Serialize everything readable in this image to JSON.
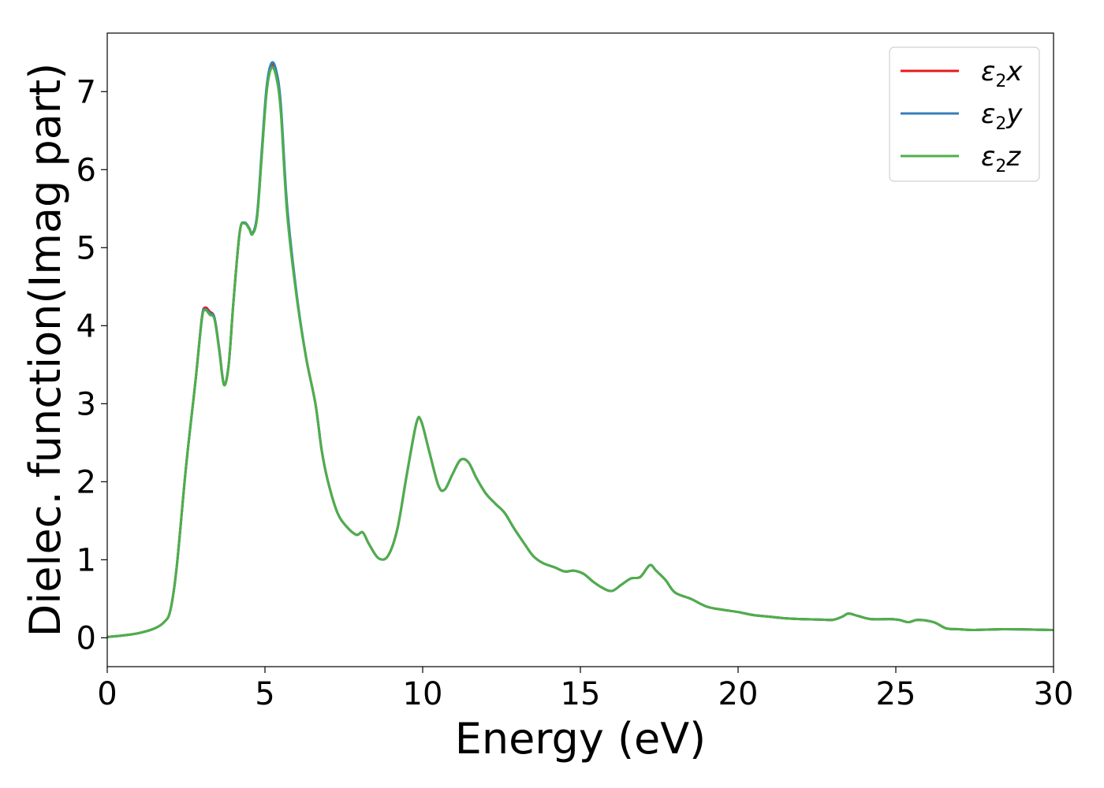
{
  "chart_data": {
    "type": "line",
    "title": "",
    "xlabel": "Energy (eV)",
    "ylabel": "Dielec. function(Imag part)",
    "xlim": [
      0,
      30
    ],
    "ylim": [
      -0.37,
      7.75
    ],
    "xticks": [
      0,
      5,
      10,
      15,
      20,
      25,
      30
    ],
    "yticks": [
      0,
      1,
      2,
      3,
      4,
      5,
      6,
      7
    ],
    "grid": false,
    "legend_position": "top-right",
    "series": [
      {
        "name": "ε2x",
        "label_main": "ε",
        "label_sub": "2",
        "label_suffix": "x",
        "color": "#e41a1c",
        "points": [
          [
            0,
            0.01
          ],
          [
            0.5,
            0.03
          ],
          [
            1.0,
            0.06
          ],
          [
            1.5,
            0.12
          ],
          [
            1.8,
            0.2
          ],
          [
            2.0,
            0.35
          ],
          [
            2.2,
            0.9
          ],
          [
            2.5,
            2.2
          ],
          [
            2.8,
            3.3
          ],
          [
            3.0,
            4.1
          ],
          [
            3.1,
            4.23
          ],
          [
            3.25,
            4.18
          ],
          [
            3.4,
            4.1
          ],
          [
            3.55,
            3.7
          ],
          [
            3.7,
            3.25
          ],
          [
            3.85,
            3.5
          ],
          [
            4.0,
            4.3
          ],
          [
            4.2,
            5.2
          ],
          [
            4.35,
            5.32
          ],
          [
            4.5,
            5.25
          ],
          [
            4.6,
            5.18
          ],
          [
            4.75,
            5.4
          ],
          [
            4.9,
            6.2
          ],
          [
            5.05,
            7.0
          ],
          [
            5.2,
            7.33
          ],
          [
            5.35,
            7.25
          ],
          [
            5.5,
            6.8
          ],
          [
            5.7,
            5.5
          ],
          [
            6.0,
            4.4
          ],
          [
            6.3,
            3.6
          ],
          [
            6.6,
            3.0
          ],
          [
            6.8,
            2.4
          ],
          [
            7.0,
            2.0
          ],
          [
            7.3,
            1.6
          ],
          [
            7.6,
            1.42
          ],
          [
            7.9,
            1.32
          ],
          [
            8.1,
            1.35
          ],
          [
            8.3,
            1.2
          ],
          [
            8.6,
            1.02
          ],
          [
            8.9,
            1.05
          ],
          [
            9.2,
            1.4
          ],
          [
            9.5,
            2.1
          ],
          [
            9.8,
            2.75
          ],
          [
            9.95,
            2.78
          ],
          [
            10.2,
            2.4
          ],
          [
            10.5,
            1.95
          ],
          [
            10.7,
            1.9
          ],
          [
            10.95,
            2.1
          ],
          [
            11.2,
            2.28
          ],
          [
            11.45,
            2.25
          ],
          [
            11.7,
            2.05
          ],
          [
            12.0,
            1.85
          ],
          [
            12.3,
            1.72
          ],
          [
            12.6,
            1.6
          ],
          [
            12.9,
            1.4
          ],
          [
            13.2,
            1.22
          ],
          [
            13.5,
            1.05
          ],
          [
            13.8,
            0.96
          ],
          [
            14.2,
            0.9
          ],
          [
            14.5,
            0.85
          ],
          [
            14.8,
            0.86
          ],
          [
            15.1,
            0.82
          ],
          [
            15.4,
            0.72
          ],
          [
            15.7,
            0.64
          ],
          [
            16.0,
            0.6
          ],
          [
            16.3,
            0.68
          ],
          [
            16.6,
            0.76
          ],
          [
            16.9,
            0.78
          ],
          [
            17.2,
            0.93
          ],
          [
            17.4,
            0.86
          ],
          [
            17.7,
            0.74
          ],
          [
            18.0,
            0.58
          ],
          [
            18.5,
            0.5
          ],
          [
            19.0,
            0.4
          ],
          [
            19.5,
            0.36
          ],
          [
            20.0,
            0.33
          ],
          [
            20.5,
            0.29
          ],
          [
            21.0,
            0.27
          ],
          [
            21.5,
            0.25
          ],
          [
            22.0,
            0.24
          ],
          [
            22.5,
            0.235
          ],
          [
            23.0,
            0.23
          ],
          [
            23.3,
            0.27
          ],
          [
            23.5,
            0.31
          ],
          [
            23.8,
            0.28
          ],
          [
            24.2,
            0.24
          ],
          [
            24.8,
            0.24
          ],
          [
            25.1,
            0.23
          ],
          [
            25.4,
            0.2
          ],
          [
            25.7,
            0.23
          ],
          [
            26.2,
            0.2
          ],
          [
            26.6,
            0.12
          ],
          [
            27.0,
            0.11
          ],
          [
            27.5,
            0.1
          ],
          [
            28.5,
            0.11
          ],
          [
            30,
            0.1
          ]
        ]
      },
      {
        "name": "ε2y",
        "label_main": "ε",
        "label_sub": "2",
        "label_suffix": "y",
        "color": "#377eb8",
        "points": [
          [
            0,
            0.01
          ],
          [
            0.5,
            0.03
          ],
          [
            1.0,
            0.06
          ],
          [
            1.5,
            0.12
          ],
          [
            1.8,
            0.2
          ],
          [
            2.0,
            0.35
          ],
          [
            2.2,
            0.9
          ],
          [
            2.5,
            2.2
          ],
          [
            2.8,
            3.3
          ],
          [
            3.0,
            4.1
          ],
          [
            3.1,
            4.21
          ],
          [
            3.25,
            4.16
          ],
          [
            3.4,
            4.1
          ],
          [
            3.55,
            3.7
          ],
          [
            3.7,
            3.25
          ],
          [
            3.85,
            3.5
          ],
          [
            4.0,
            4.3
          ],
          [
            4.2,
            5.2
          ],
          [
            4.35,
            5.32
          ],
          [
            4.5,
            5.25
          ],
          [
            4.6,
            5.18
          ],
          [
            4.75,
            5.42
          ],
          [
            4.9,
            6.25
          ],
          [
            5.05,
            7.05
          ],
          [
            5.2,
            7.36
          ],
          [
            5.35,
            7.28
          ],
          [
            5.5,
            6.85
          ],
          [
            5.7,
            5.55
          ],
          [
            6.0,
            4.42
          ],
          [
            6.3,
            3.6
          ],
          [
            6.6,
            3.0
          ],
          [
            6.8,
            2.4
          ],
          [
            7.0,
            2.0
          ],
          [
            7.3,
            1.6
          ],
          [
            7.6,
            1.42
          ],
          [
            7.9,
            1.32
          ],
          [
            8.1,
            1.35
          ],
          [
            8.3,
            1.2
          ],
          [
            8.6,
            1.02
          ],
          [
            8.9,
            1.05
          ],
          [
            9.2,
            1.4
          ],
          [
            9.5,
            2.1
          ],
          [
            9.8,
            2.75
          ],
          [
            9.95,
            2.78
          ],
          [
            10.2,
            2.4
          ],
          [
            10.5,
            1.95
          ],
          [
            10.7,
            1.9
          ],
          [
            10.95,
            2.1
          ],
          [
            11.2,
            2.28
          ],
          [
            11.45,
            2.25
          ],
          [
            11.7,
            2.05
          ],
          [
            12.0,
            1.85
          ],
          [
            12.3,
            1.72
          ],
          [
            12.6,
            1.6
          ],
          [
            12.9,
            1.4
          ],
          [
            13.2,
            1.22
          ],
          [
            13.5,
            1.05
          ],
          [
            13.8,
            0.96
          ],
          [
            14.2,
            0.9
          ],
          [
            14.5,
            0.85
          ],
          [
            14.8,
            0.86
          ],
          [
            15.1,
            0.82
          ],
          [
            15.4,
            0.72
          ],
          [
            15.7,
            0.64
          ],
          [
            16.0,
            0.6
          ],
          [
            16.3,
            0.68
          ],
          [
            16.6,
            0.76
          ],
          [
            16.9,
            0.78
          ],
          [
            17.2,
            0.93
          ],
          [
            17.4,
            0.86
          ],
          [
            17.7,
            0.74
          ],
          [
            18.0,
            0.58
          ],
          [
            18.5,
            0.5
          ],
          [
            19.0,
            0.4
          ],
          [
            19.5,
            0.36
          ],
          [
            20.0,
            0.33
          ],
          [
            20.5,
            0.29
          ],
          [
            21.0,
            0.27
          ],
          [
            21.5,
            0.25
          ],
          [
            22.0,
            0.24
          ],
          [
            22.5,
            0.235
          ],
          [
            23.0,
            0.23
          ],
          [
            23.3,
            0.27
          ],
          [
            23.5,
            0.31
          ],
          [
            23.8,
            0.28
          ],
          [
            24.2,
            0.24
          ],
          [
            24.8,
            0.24
          ],
          [
            25.1,
            0.23
          ],
          [
            25.4,
            0.2
          ],
          [
            25.7,
            0.23
          ],
          [
            26.2,
            0.2
          ],
          [
            26.6,
            0.12
          ],
          [
            27.0,
            0.11
          ],
          [
            27.5,
            0.1
          ],
          [
            28.5,
            0.11
          ],
          [
            30,
            0.1
          ]
        ]
      },
      {
        "name": "ε2z",
        "label_main": "ε",
        "label_sub": "2",
        "label_suffix": "z",
        "color": "#4daf4a",
        "points": [
          [
            0,
            0.01
          ],
          [
            0.5,
            0.03
          ],
          [
            1.0,
            0.06
          ],
          [
            1.5,
            0.12
          ],
          [
            1.8,
            0.2
          ],
          [
            2.0,
            0.35
          ],
          [
            2.2,
            0.9
          ],
          [
            2.5,
            2.2
          ],
          [
            2.8,
            3.3
          ],
          [
            3.0,
            4.08
          ],
          [
            3.1,
            4.2
          ],
          [
            3.25,
            4.14
          ],
          [
            3.4,
            4.08
          ],
          [
            3.55,
            3.68
          ],
          [
            3.7,
            3.24
          ],
          [
            3.85,
            3.5
          ],
          [
            4.0,
            4.3
          ],
          [
            4.2,
            5.2
          ],
          [
            4.35,
            5.31
          ],
          [
            4.5,
            5.24
          ],
          [
            4.6,
            5.17
          ],
          [
            4.75,
            5.38
          ],
          [
            4.9,
            6.18
          ],
          [
            5.05,
            6.98
          ],
          [
            5.2,
            7.3
          ],
          [
            5.35,
            7.2
          ],
          [
            5.5,
            6.75
          ],
          [
            5.7,
            5.45
          ],
          [
            6.0,
            4.38
          ],
          [
            6.3,
            3.6
          ],
          [
            6.6,
            3.0
          ],
          [
            6.8,
            2.4
          ],
          [
            7.0,
            2.0
          ],
          [
            7.3,
            1.6
          ],
          [
            7.6,
            1.42
          ],
          [
            7.9,
            1.32
          ],
          [
            8.1,
            1.35
          ],
          [
            8.3,
            1.2
          ],
          [
            8.6,
            1.02
          ],
          [
            8.9,
            1.05
          ],
          [
            9.2,
            1.4
          ],
          [
            9.5,
            2.1
          ],
          [
            9.8,
            2.75
          ],
          [
            9.95,
            2.78
          ],
          [
            10.2,
            2.4
          ],
          [
            10.5,
            1.95
          ],
          [
            10.7,
            1.9
          ],
          [
            10.95,
            2.1
          ],
          [
            11.2,
            2.28
          ],
          [
            11.45,
            2.25
          ],
          [
            11.7,
            2.05
          ],
          [
            12.0,
            1.85
          ],
          [
            12.3,
            1.72
          ],
          [
            12.6,
            1.6
          ],
          [
            12.9,
            1.4
          ],
          [
            13.2,
            1.22
          ],
          [
            13.5,
            1.05
          ],
          [
            13.8,
            0.96
          ],
          [
            14.2,
            0.9
          ],
          [
            14.5,
            0.85
          ],
          [
            14.8,
            0.86
          ],
          [
            15.1,
            0.82
          ],
          [
            15.4,
            0.72
          ],
          [
            15.7,
            0.64
          ],
          [
            16.0,
            0.6
          ],
          [
            16.3,
            0.68
          ],
          [
            16.6,
            0.76
          ],
          [
            16.9,
            0.78
          ],
          [
            17.2,
            0.93
          ],
          [
            17.4,
            0.86
          ],
          [
            17.7,
            0.74
          ],
          [
            18.0,
            0.58
          ],
          [
            18.5,
            0.5
          ],
          [
            19.0,
            0.4
          ],
          [
            19.5,
            0.36
          ],
          [
            20.0,
            0.33
          ],
          [
            20.5,
            0.29
          ],
          [
            21.0,
            0.27
          ],
          [
            21.5,
            0.25
          ],
          [
            22.0,
            0.24
          ],
          [
            22.5,
            0.235
          ],
          [
            23.0,
            0.23
          ],
          [
            23.3,
            0.27
          ],
          [
            23.5,
            0.31
          ],
          [
            23.8,
            0.28
          ],
          [
            24.2,
            0.24
          ],
          [
            24.8,
            0.24
          ],
          [
            25.1,
            0.23
          ],
          [
            25.4,
            0.2
          ],
          [
            25.7,
            0.23
          ],
          [
            26.2,
            0.2
          ],
          [
            26.6,
            0.12
          ],
          [
            27.0,
            0.11
          ],
          [
            27.5,
            0.1
          ],
          [
            28.5,
            0.11
          ],
          [
            30,
            0.1
          ]
        ]
      }
    ]
  }
}
